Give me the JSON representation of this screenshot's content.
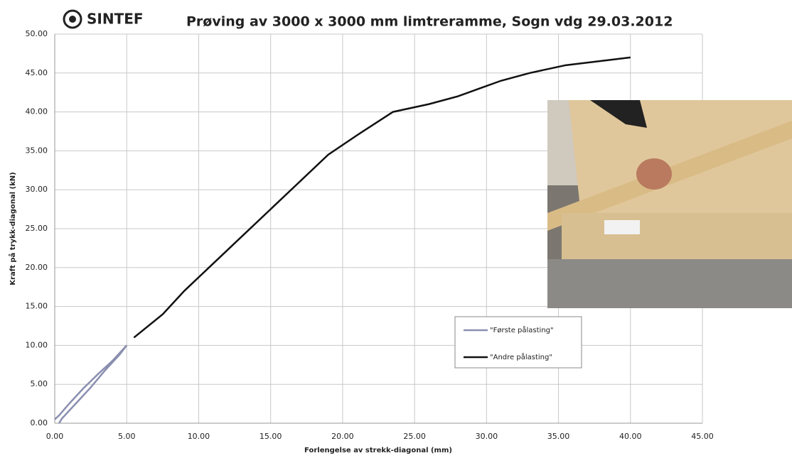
{
  "chart_data": {
    "type": "line",
    "logo": "SINTEF",
    "title": "Prøving av 3000 x 3000 mm limtreramme, Sogn vdg 29.03.2012",
    "x_label": "Forlengelse  av strekk-diagonal (mm)",
    "y_label": "Kraft på trykk-diagonal (kN)",
    "xlim": [
      0,
      45
    ],
    "ylim": [
      0,
      50
    ],
    "xticks": [
      {
        "value": 0,
        "label": "0.00"
      },
      {
        "value": 5,
        "label": "5.00"
      },
      {
        "value": 10,
        "label": "10.00"
      },
      {
        "value": 15,
        "label": "15.00"
      },
      {
        "value": 20,
        "label": "20.00"
      },
      {
        "value": 25,
        "label": "25.00"
      },
      {
        "value": 30,
        "label": "30.00"
      },
      {
        "value": 35,
        "label": "35.00"
      },
      {
        "value": 40,
        "label": "40.00"
      },
      {
        "value": 45,
        "label": "45.00"
      }
    ],
    "yticks": [
      {
        "value": 0,
        "label": "0.00"
      },
      {
        "value": 5,
        "label": "5.00"
      },
      {
        "value": 10,
        "label": "10.00"
      },
      {
        "value": 15,
        "label": "15.00"
      },
      {
        "value": 20,
        "label": "20.00"
      },
      {
        "value": 25,
        "label": "25.00"
      },
      {
        "value": 30,
        "label": "30.00"
      },
      {
        "value": 35,
        "label": "35.00"
      },
      {
        "value": 40,
        "label": "40.00"
      },
      {
        "value": 45,
        "label": "45.00"
      },
      {
        "value": 50,
        "label": "50.00"
      }
    ],
    "grid": true,
    "series": [
      {
        "name": "\"Første pålasting\"",
        "color": "#8a8fb0",
        "x": [
          0,
          0.3,
          1,
          2,
          3,
          4,
          5,
          4.5,
          3.5,
          2.5,
          1.5,
          0.5,
          0.3
        ],
        "values": [
          0.5,
          1,
          2.5,
          4.5,
          6.3,
          8,
          10,
          8.8,
          6.8,
          4.6,
          2.6,
          0.6,
          0
        ]
      },
      {
        "name": "\"Andre pålasting\"",
        "color": "#111111",
        "x": [
          5.5,
          7.5,
          9,
          11,
          13,
          15,
          17,
          19,
          21,
          23.5,
          26,
          28,
          29.5,
          31,
          33,
          35.5,
          40
        ],
        "values": [
          11,
          14,
          17,
          20.5,
          24,
          27.5,
          31,
          34.5,
          37,
          40,
          41,
          42,
          43,
          44,
          45,
          46,
          47
        ]
      }
    ]
  }
}
